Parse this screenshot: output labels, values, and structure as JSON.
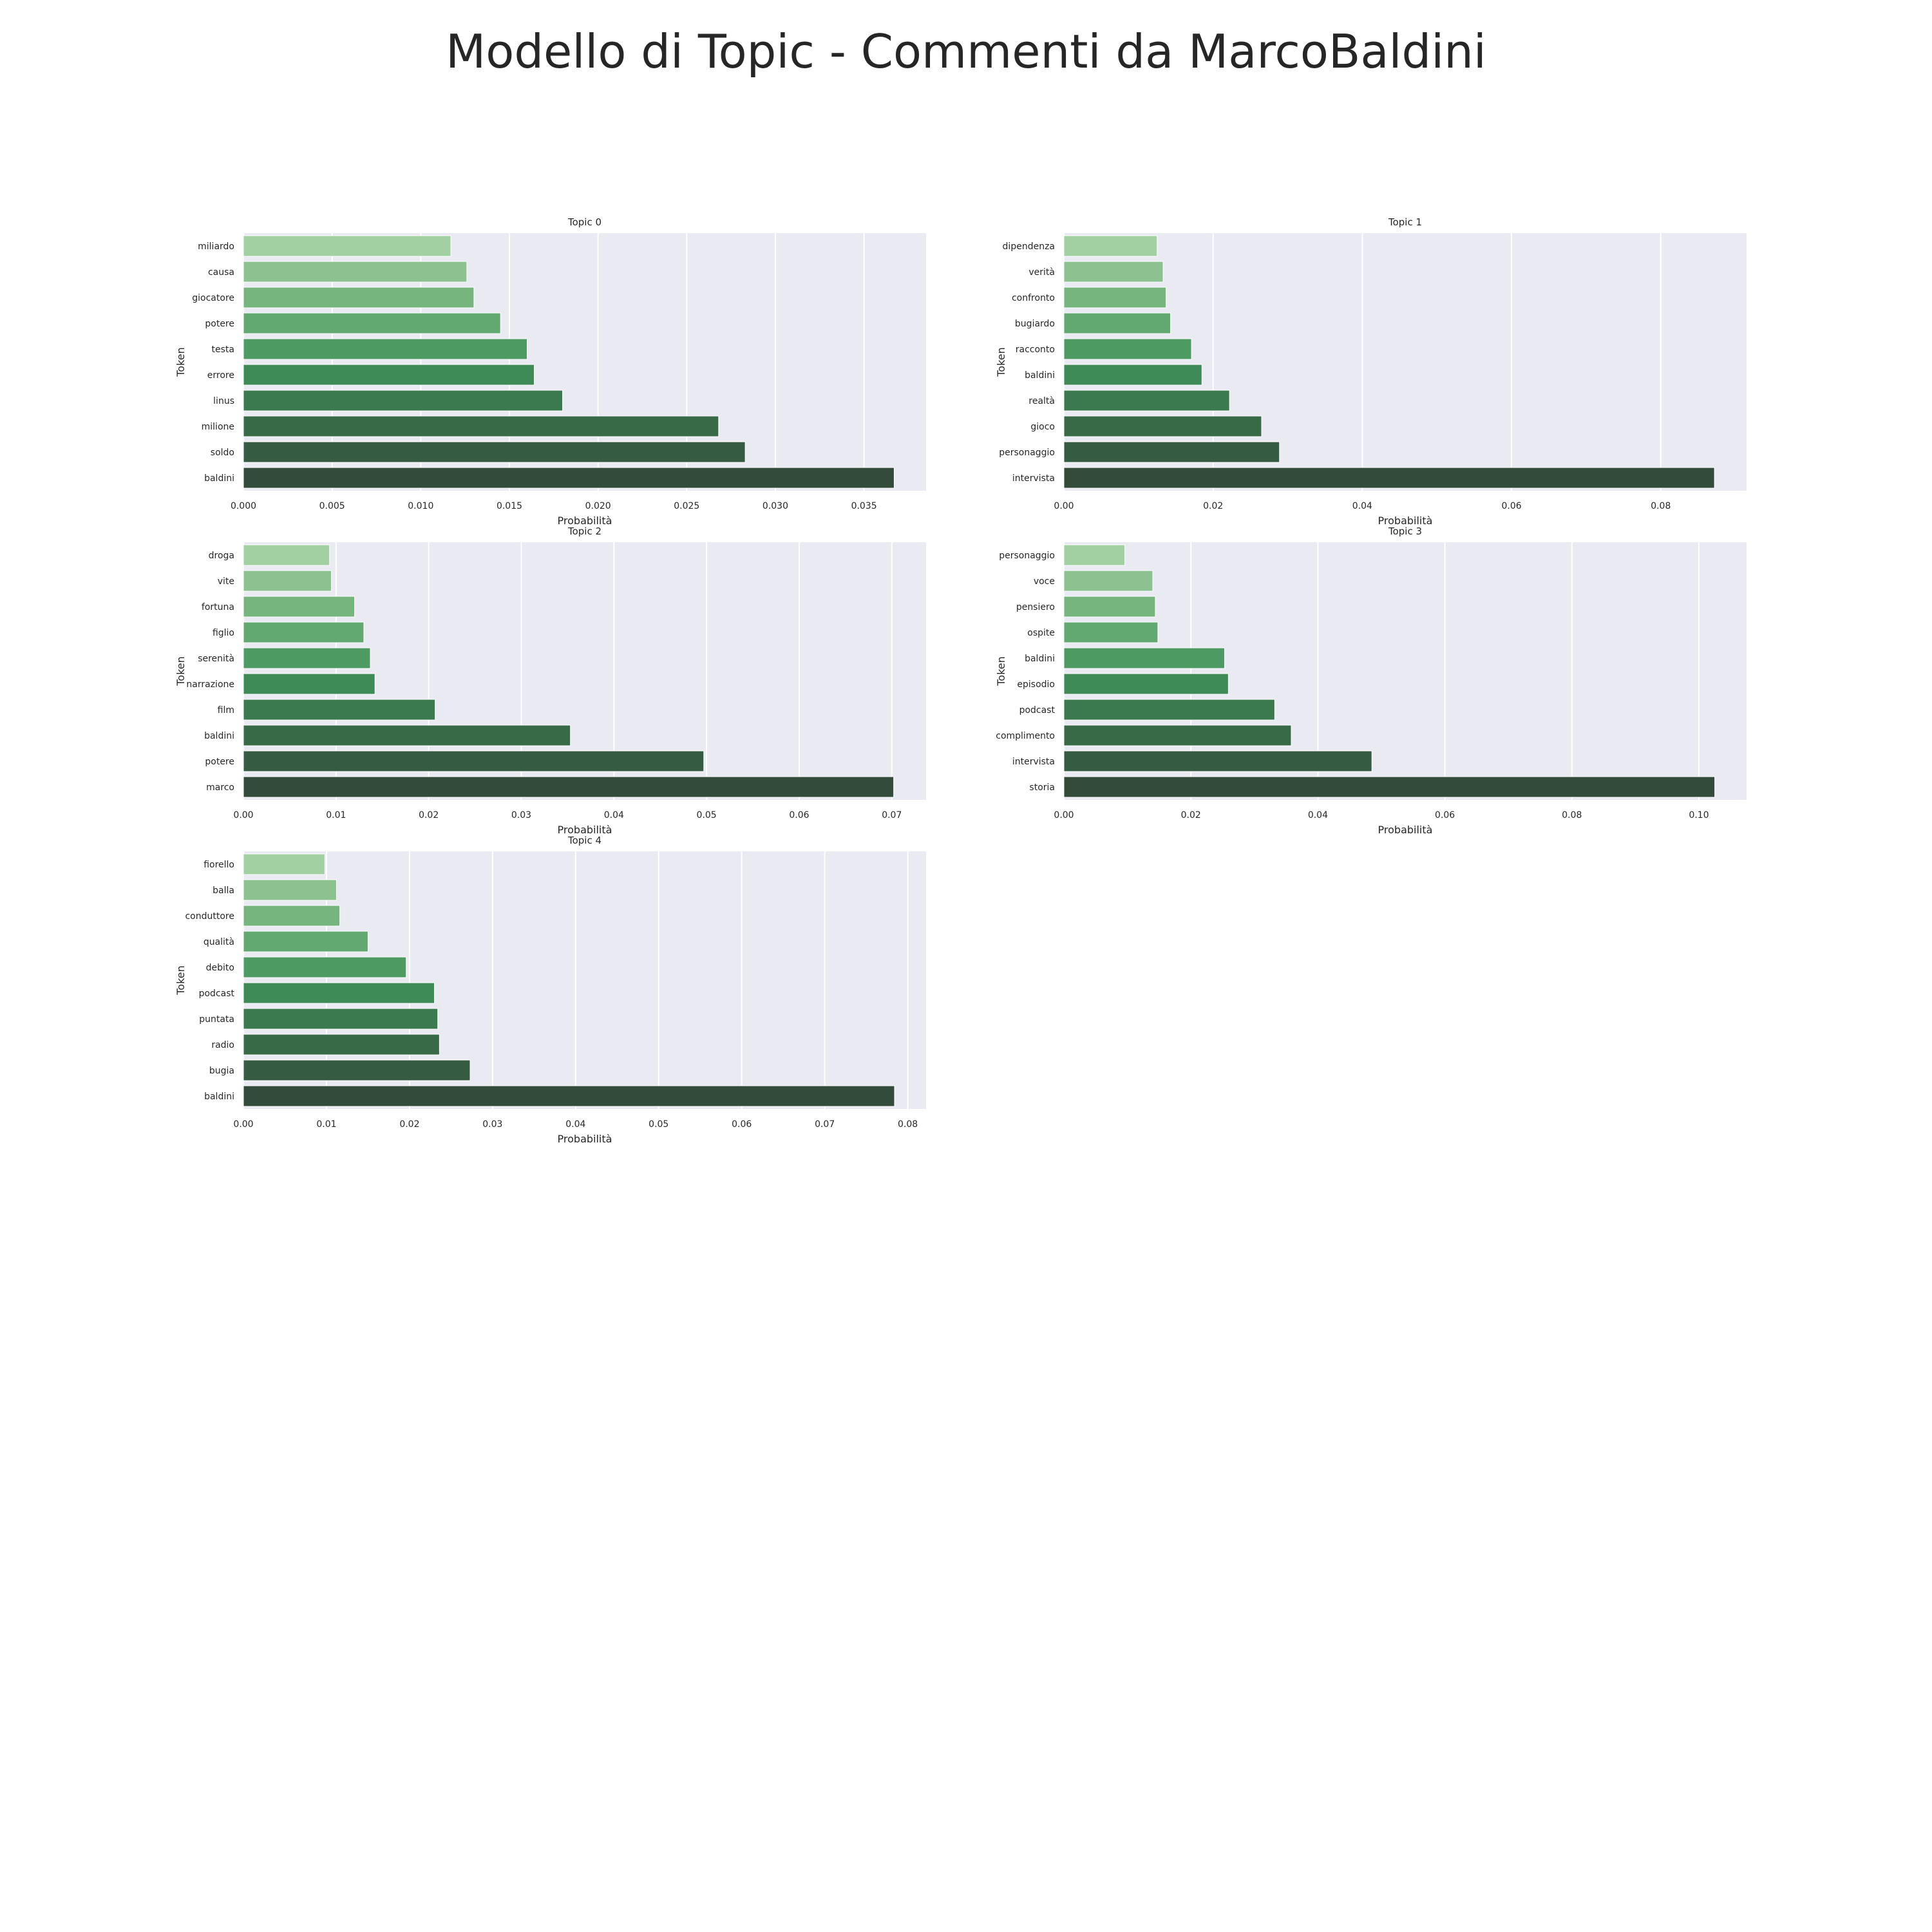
{
  "title": "Modello di Topic - Commenti da MarcoBaldini",
  "colors": {
    "plot_background": "#eaeaf2",
    "grid": "#ffffff",
    "bar_palette": [
      "#a3d0a2",
      "#8cc28f",
      "#77b57f",
      "#62a871",
      "#4d9b63",
      "#3f8b57",
      "#3a7a4e",
      "#386a48",
      "#355b42",
      "#334b3a"
    ]
  },
  "chart_data": [
    {
      "type": "bar",
      "orientation": "horizontal",
      "title": "Topic 0",
      "xlabel": "Probabilità",
      "ylabel": "Token",
      "categories": [
        "miliardo",
        "causa",
        "giocatore",
        "potere",
        "testa",
        "errore",
        "linus",
        "milione",
        "soldo",
        "baldini"
      ],
      "values": [
        0.0117,
        0.0126,
        0.013,
        0.0145,
        0.016,
        0.0164,
        0.018,
        0.0268,
        0.0283,
        0.0367
      ],
      "xlim": [
        0,
        0.0385
      ],
      "xticks": [
        "0.000",
        "0.005",
        "0.010",
        "0.015",
        "0.020",
        "0.025",
        "0.030",
        "0.035"
      ],
      "xtick_values": [
        0,
        0.005,
        0.01,
        0.015,
        0.02,
        0.025,
        0.03,
        0.035
      ]
    },
    {
      "type": "bar",
      "orientation": "horizontal",
      "title": "Topic 1",
      "xlabel": "Probabilità",
      "ylabel": "Token",
      "categories": [
        "dipendenza",
        "verità",
        "confronto",
        "bugiardo",
        "racconto",
        "baldini",
        "realtà",
        "gioco",
        "personaggio",
        "intervista"
      ],
      "values": [
        0.0125,
        0.0133,
        0.0137,
        0.0143,
        0.0171,
        0.0185,
        0.0222,
        0.0265,
        0.0289,
        0.0872
      ],
      "xlim": [
        0,
        0.0915
      ],
      "xticks": [
        "0.00",
        "0.02",
        "0.04",
        "0.06",
        "0.08"
      ],
      "xtick_values": [
        0,
        0.02,
        0.04,
        0.06,
        0.08
      ]
    },
    {
      "type": "bar",
      "orientation": "horizontal",
      "title": "Topic 2",
      "xlabel": "Probabilità",
      "ylabel": "Token",
      "categories": [
        "droga",
        "vite",
        "fortuna",
        "figlio",
        "serenità",
        "narrazione",
        "film",
        "baldini",
        "potere",
        "marco"
      ],
      "values": [
        0.0093,
        0.0095,
        0.012,
        0.013,
        0.0137,
        0.0142,
        0.0207,
        0.0353,
        0.0497,
        0.0702
      ],
      "xlim": [
        0,
        0.0737
      ],
      "xticks": [
        "0.00",
        "0.01",
        "0.02",
        "0.03",
        "0.04",
        "0.05",
        "0.06",
        "0.07"
      ],
      "xtick_values": [
        0,
        0.01,
        0.02,
        0.03,
        0.04,
        0.05,
        0.06,
        0.07
      ]
    },
    {
      "type": "bar",
      "orientation": "horizontal",
      "title": "Topic 3",
      "xlabel": "Probabilità",
      "ylabel": "Token",
      "categories": [
        "personaggio",
        "voce",
        "pensiero",
        "ospite",
        "baldini",
        "episodio",
        "podcast",
        "complimento",
        "intervista",
        "storia"
      ],
      "values": [
        0.0096,
        0.014,
        0.0144,
        0.0148,
        0.0253,
        0.0259,
        0.0332,
        0.0358,
        0.0485,
        0.1025
      ],
      "xlim": [
        0,
        0.1075
      ],
      "xticks": [
        "0.00",
        "0.02",
        "0.04",
        "0.06",
        "0.08",
        "0.10"
      ],
      "xtick_values": [
        0,
        0.02,
        0.04,
        0.06,
        0.08,
        0.1
      ]
    },
    {
      "type": "bar",
      "orientation": "horizontal",
      "title": "Topic 4",
      "xlabel": "Probabilità",
      "ylabel": "Token",
      "categories": [
        "fiorello",
        "balla",
        "conduttore",
        "qualità",
        "debito",
        "podcast",
        "puntata",
        "radio",
        "bugia",
        "baldini"
      ],
      "values": [
        0.0098,
        0.0112,
        0.0116,
        0.015,
        0.0196,
        0.023,
        0.0234,
        0.0236,
        0.0273,
        0.0784
      ],
      "xlim": [
        0,
        0.0822
      ],
      "xticks": [
        "0.00",
        "0.01",
        "0.02",
        "0.03",
        "0.04",
        "0.05",
        "0.06",
        "0.07",
        "0.08"
      ],
      "xtick_values": [
        0,
        0.01,
        0.02,
        0.03,
        0.04,
        0.05,
        0.06,
        0.07,
        0.08
      ]
    }
  ]
}
